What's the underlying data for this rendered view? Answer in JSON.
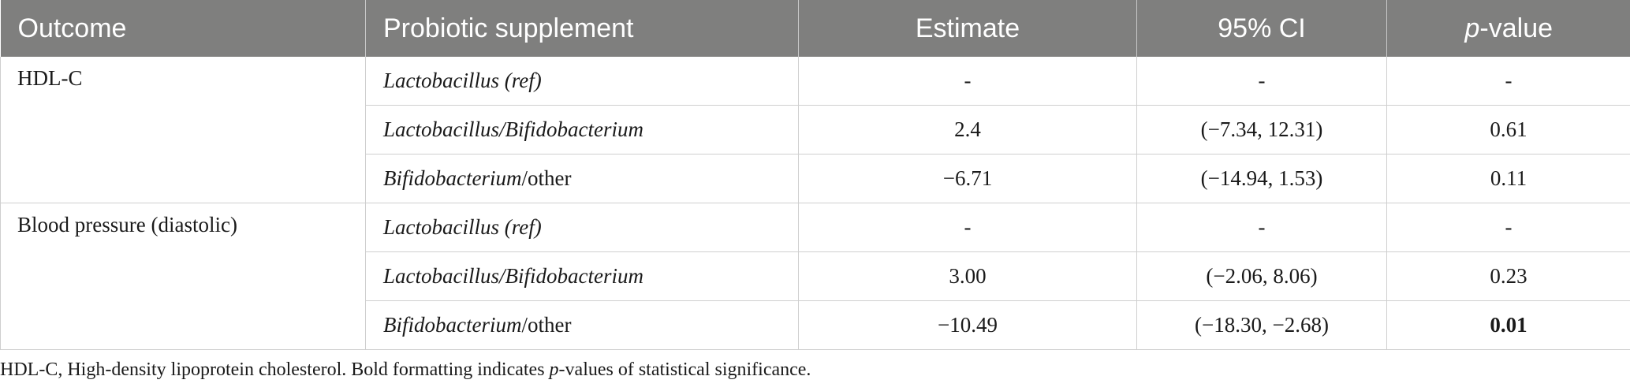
{
  "table": {
    "headers": {
      "outcome": "Outcome",
      "supplement": "Probiotic supplement",
      "estimate": "Estimate",
      "ci": "95% CI",
      "pvalue_italic": "p",
      "pvalue_rest": "-value"
    },
    "groups": [
      {
        "outcome": "HDL-C",
        "rows": [
          {
            "supp_a": "Lactobacillus (ref)",
            "supp_b": "",
            "estimate": "-",
            "ci": "-",
            "pvalue": "-",
            "significant": false
          },
          {
            "supp_a": "Lactobacillus/Bifidobacterium",
            "supp_b": "",
            "estimate": "2.4",
            "ci": "(−7.34, 12.31)",
            "pvalue": "0.61",
            "significant": false
          },
          {
            "supp_a": "Bifidobacterium",
            "supp_b": "/other",
            "estimate": "−6.71",
            "ci": "(−14.94, 1.53)",
            "pvalue": "0.11",
            "significant": false
          }
        ]
      },
      {
        "outcome": "Blood pressure (diastolic)",
        "rows": [
          {
            "supp_a": "Lactobacillus (ref)",
            "supp_b": "",
            "estimate": "-",
            "ci": "-",
            "pvalue": "-",
            "significant": false
          },
          {
            "supp_a": "Lactobacillus/Bifidobacterium",
            "supp_b": "",
            "estimate": "3.00",
            "ci": "(−2.06, 8.06)",
            "pvalue": "0.23",
            "significant": false
          },
          {
            "supp_a": "Bifidobacterium",
            "supp_b": "/other",
            "estimate": "−10.49",
            "ci": "(−18.30, −2.68)",
            "pvalue": "0.01",
            "significant": true
          }
        ]
      }
    ]
  },
  "footnote": {
    "part1": "HDL-C, High-density lipoprotein cholesterol. Bold formatting indicates ",
    "p_italic": "p",
    "part2": "-values of statistical significance."
  },
  "colors": {
    "header_bg": "#7f7f7e",
    "header_text": "#ffffff",
    "border": "#cfcfcf"
  }
}
